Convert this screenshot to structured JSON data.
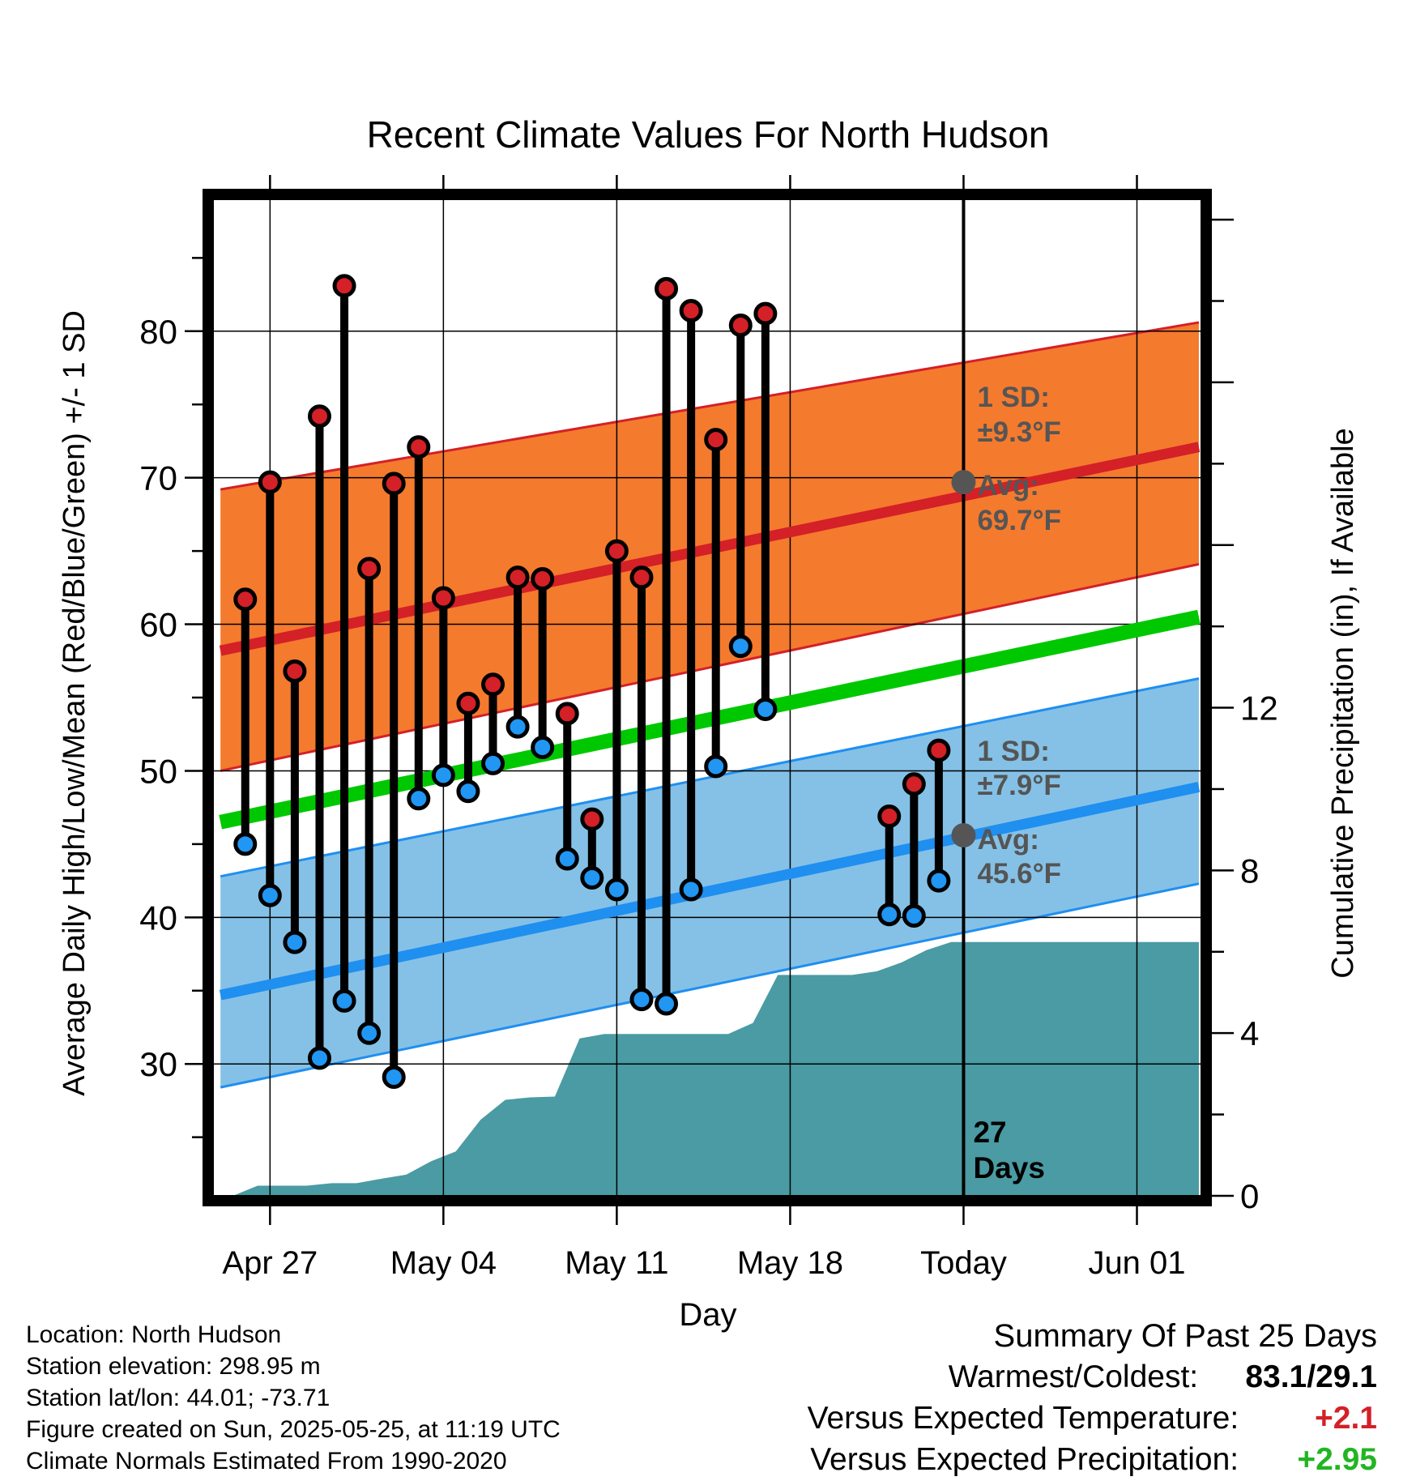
{
  "chart_data": {
    "type": "line",
    "title": "Recent Climate Values For North Hudson",
    "xlabel": "Day",
    "ylabel_left": "Average Daily High/Low/Mean (Red/Blue/Green) +/- 1 SD",
    "ylabel_right": "Cumulative Precipitation (in), If Available",
    "x_ticks": [
      "Apr 27",
      "May 04",
      "May 11",
      "May 18",
      "Today",
      "Jun 01"
    ],
    "y_ticks_left": [
      "30",
      "40",
      "50",
      "60",
      "70",
      "80"
    ],
    "y_ticks_right": [
      "0",
      "4",
      "8",
      "12"
    ],
    "ylim_left": [
      21,
      89
    ],
    "ylim_right": [
      0,
      24.5
    ],
    "xlim_days": [
      -30.3,
      9.6
    ],
    "today_label": "27\nDays",
    "grid": true,
    "normals": {
      "x_days": [
        -30,
        9.5
      ],
      "high_avg": [
        58.2,
        72.1
      ],
      "high_upper": [
        69.2,
        80.6
      ],
      "high_lower": [
        50.0,
        64.1
      ],
      "mean_avg": [
        46.5,
        60.5
      ],
      "low_avg": [
        34.7,
        48.9
      ],
      "low_upper": [
        42.8,
        56.3
      ],
      "low_lower": [
        28.4,
        42.3
      ]
    },
    "sd_annotations": [
      {
        "sd_label": "1 SD:",
        "sd_value": "±9.3°F",
        "avg_label": "Avg:",
        "avg_value": "69.7°F",
        "marker_value": 69.7
      },
      {
        "sd_label": "1 SD:",
        "sd_value": "±7.9°F",
        "avg_label": "Avg:",
        "avg_value": "45.6°F",
        "marker_value": 45.6
      }
    ],
    "daily": [
      {
        "day": -29,
        "high": 61.7,
        "low": 45.0
      },
      {
        "day": -28,
        "high": 69.7,
        "low": 41.5
      },
      {
        "day": -27,
        "high": 56.8,
        "low": 38.3
      },
      {
        "day": -26,
        "high": 74.2,
        "low": 30.4
      },
      {
        "day": -25,
        "high": 83.1,
        "low": 34.3
      },
      {
        "day": -24,
        "high": 63.8,
        "low": 32.1
      },
      {
        "day": -23,
        "high": 69.6,
        "low": 29.1
      },
      {
        "day": -22,
        "high": 72.1,
        "low": 48.1
      },
      {
        "day": -21,
        "high": 61.8,
        "low": 49.7
      },
      {
        "day": -20,
        "high": 54.6,
        "low": 48.6
      },
      {
        "day": -19,
        "high": 55.9,
        "low": 50.5
      },
      {
        "day": -18,
        "high": 63.2,
        "low": 53.0
      },
      {
        "day": -17,
        "high": 63.1,
        "low": 51.6
      },
      {
        "day": -16,
        "high": 53.9,
        "low": 44.0
      },
      {
        "day": -15,
        "high": 46.7,
        "low": 42.7
      },
      {
        "day": -14,
        "high": 65.0,
        "low": 41.9
      },
      {
        "day": -13,
        "high": 63.2,
        "low": 34.4
      },
      {
        "day": -12,
        "high": 82.9,
        "low": 34.1
      },
      {
        "day": -11,
        "high": 81.4,
        "low": 41.9
      },
      {
        "day": -10,
        "high": 72.6,
        "low": 50.3
      },
      {
        "day": -9,
        "high": 80.4,
        "low": 58.5
      },
      {
        "day": -8,
        "high": 81.2,
        "low": 54.2
      },
      {
        "day": -3,
        "high": 46.9,
        "low": 40.2
      },
      {
        "day": -2,
        "high": 49.1,
        "low": 40.1
      },
      {
        "day": -1,
        "high": 51.4,
        "low": 42.5
      }
    ],
    "precip_cumulative": {
      "day": [
        -29.5,
        -28.5,
        -27.5,
        -26.5,
        -25.5,
        -24.5,
        -23.5,
        -22.5,
        -21.5,
        -20.5,
        -19.5,
        -18.5,
        -17.5,
        -16.5,
        -15.5,
        -14.5,
        -13.5,
        -12.5,
        -11.5,
        -10.5,
        -9.5,
        -8.5,
        -7.5,
        -6.5,
        -5.5,
        -4.5,
        -3.5,
        -2.5,
        -1.5,
        -0.5,
        9.5
      ],
      "value": [
        0,
        0.25,
        0.25,
        0.25,
        0.31,
        0.31,
        0.42,
        0.52,
        0.85,
        1.09,
        1.87,
        2.36,
        2.42,
        2.44,
        3.87,
        3.98,
        3.98,
        3.98,
        3.98,
        3.98,
        3.98,
        4.25,
        5.43,
        5.43,
        5.43,
        5.43,
        5.52,
        5.74,
        6.04,
        6.24,
        6.24
      ]
    }
  },
  "footer": {
    "location": "Location: North Hudson",
    "elevation": "Station elevation: 298.95 m",
    "latlon": "Station lat/lon: 44.01; -73.71",
    "created": "Figure created on Sun, 2025-05-25, at 11:19 UTC",
    "normals": "Climate Normals Estimated From 1990-2020"
  },
  "summary": {
    "title": "Summary Of Past 25 Days",
    "warmest_label": "Warmest/Coldest:",
    "warmest_value": "83.1/29.1",
    "temp_label": "Versus Expected Temperature:",
    "temp_value": "+2.1",
    "precip_label": "Versus Expected Precipitation:",
    "precip_value": "+2.95"
  },
  "colors": {
    "high_band": "#f47a2e",
    "high_line": "#d42027",
    "mean_line": "#00c800",
    "low_band": "#85c1e6",
    "low_line": "#1f8ff0",
    "precip": "#4a9ba3",
    "high_dot": "#d42027",
    "low_dot": "#2196f3",
    "annotation": "#555555",
    "positive_temp": "#d42027",
    "positive_precip": "#22b522"
  }
}
